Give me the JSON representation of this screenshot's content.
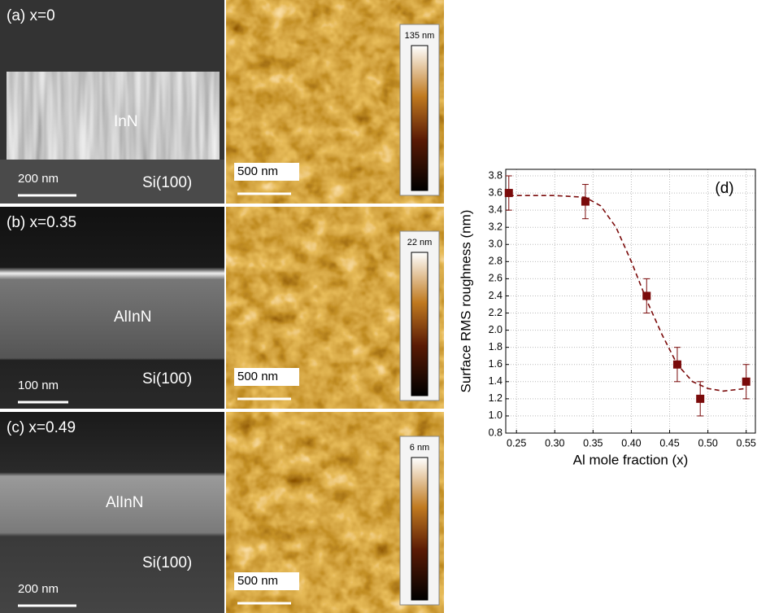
{
  "panels": [
    {
      "label": "(a)  x=0",
      "layer": "InN",
      "substrate": "Si(100)",
      "sem_scale": "200 nm",
      "afm_scale": "500 nm",
      "afm_range": "135 nm"
    },
    {
      "label": "(b)  x=0.35",
      "layer": "AlInN",
      "substrate": "Si(100)",
      "sem_scale": "100 nm",
      "afm_scale": "500 nm",
      "afm_range": "22 nm"
    },
    {
      "label": "(c)  x=0.49",
      "layer": "AlInN",
      "substrate": "Si(100)",
      "sem_scale": "200 nm",
      "afm_scale": "500 nm",
      "afm_range": "6 nm"
    }
  ],
  "chart_data": {
    "type": "scatter",
    "annotation": "(d)",
    "x_label": "Al mole fraction (x)",
    "y_label": "Surface RMS roughness (nm)",
    "x": [
      0.24,
      0.34,
      0.42,
      0.46,
      0.49,
      0.55
    ],
    "values": [
      3.6,
      3.5,
      2.4,
      1.6,
      1.2,
      1.4
    ],
    "errors": [
      0.2,
      0.2,
      0.2,
      0.2,
      0.2,
      0.2
    ],
    "color": "#7a0a0a",
    "trend": {
      "x": [
        0.24,
        0.3,
        0.34,
        0.36,
        0.38,
        0.4,
        0.42,
        0.44,
        0.46,
        0.48,
        0.5,
        0.52,
        0.55
      ],
      "values": [
        3.57,
        3.57,
        3.55,
        3.45,
        3.2,
        2.8,
        2.35,
        1.95,
        1.6,
        1.4,
        1.32,
        1.29,
        1.32
      ]
    },
    "xlim": [
      0.236,
      0.562
    ],
    "ylim": [
      0.8,
      3.876
    ],
    "xticks": [
      0.25,
      {
        "value": 0.3,
        "label": "0.30"
      },
      0.35,
      {
        "value": 0.4,
        "label": "0.40"
      },
      0.45,
      {
        "value": 0.5,
        "label": "0.50"
      },
      0.55
    ],
    "yticks": [
      0.8,
      {
        "value": 1,
        "label": "1.0"
      },
      1.2,
      1.4,
      1.6,
      1.8,
      {
        "value": 2,
        "label": "2.0"
      },
      2.2,
      2.4,
      2.6,
      2.8,
      {
        "value": 3,
        "label": "3.0"
      },
      3.2,
      3.4,
      3.6,
      3.8
    ],
    "grid": true
  }
}
